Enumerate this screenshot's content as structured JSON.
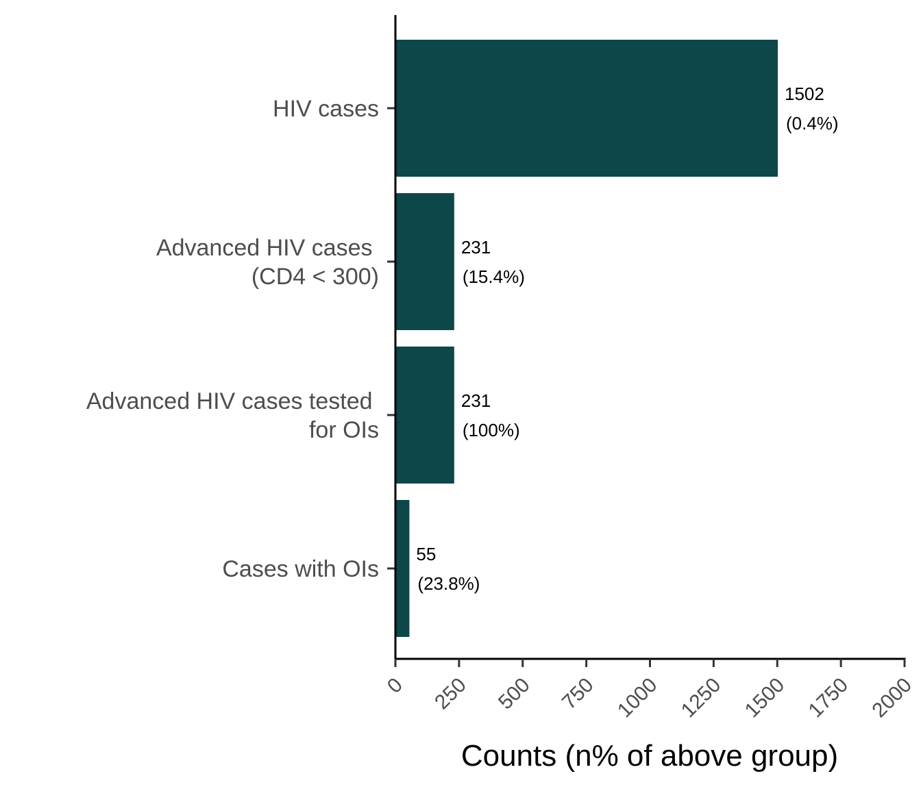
{
  "chart_data": {
    "type": "bar",
    "orientation": "horizontal",
    "categories": [
      [
        "HIV cases"
      ],
      [
        "Advanced HIV cases ",
        "(CD4 < 300)"
      ],
      [
        "Advanced HIV cases tested ",
        "for OIs"
      ],
      [
        "Cases with OIs"
      ]
    ],
    "values": [
      1502,
      231,
      231,
      55
    ],
    "value_labels": [
      [
        "1502",
        "(0.4%)"
      ],
      [
        "231",
        "(15.4%)"
      ],
      [
        "231",
        "(100%)"
      ],
      [
        "55",
        "(23.8%)"
      ]
    ],
    "xlabel": "Counts (n% of above group)",
    "ylabel": "",
    "title": "",
    "xlim": [
      0,
      2000
    ],
    "xticks": [
      "0",
      "250",
      "500",
      "750",
      "1000",
      "1250",
      "1500",
      "1750",
      "2000"
    ],
    "grid": false,
    "legend": "none",
    "bar_color": "#0d4749"
  }
}
